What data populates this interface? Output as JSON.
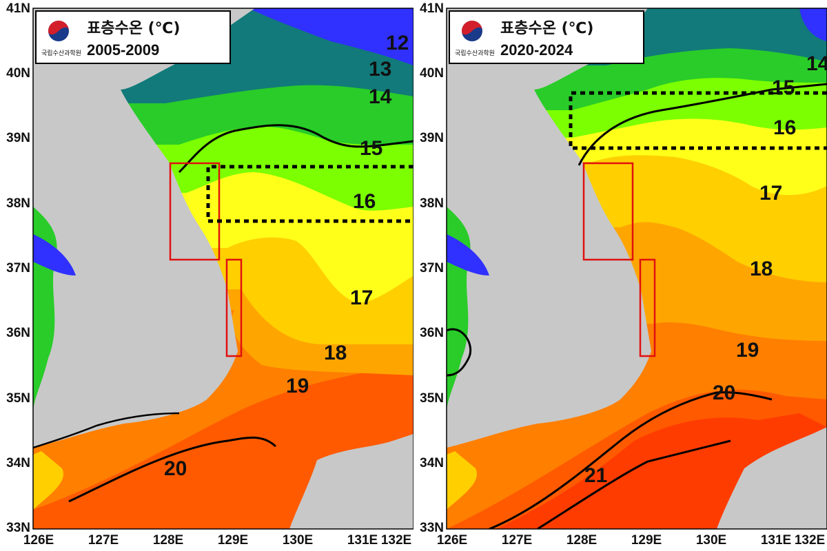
{
  "colors": {
    "land": "#c8c8c8",
    "t12": "#3030ff",
    "t13": "#127a7a",
    "t14": "#29cc29",
    "t15": "#7cff00",
    "t16": "#ffff1a",
    "t17": "#ffcf00",
    "t18": "#ffa500",
    "t19": "#ff7f00",
    "t20": "#ff5a00",
    "t21": "#ff3c00",
    "box_red": "#e01010",
    "dotted": "#000000"
  },
  "axis": {
    "lat_labels": [
      "41N",
      "40N",
      "39N",
      "38N",
      "37N",
      "36N",
      "35N",
      "34N",
      "33N"
    ],
    "lon_labels": [
      "126E",
      "127E",
      "128E",
      "129E",
      "130E",
      "131E",
      "132E"
    ]
  },
  "panels": [
    {
      "id": "left",
      "title": "표층수온 (℃)",
      "period": "2005-2009",
      "org": "국립수산과학원",
      "contours": [
        "12",
        "13",
        "14",
        "15",
        "16",
        "17",
        "18",
        "19",
        "20"
      ]
    },
    {
      "id": "right",
      "title": "표층수온 (℃)",
      "period": "2020-2024",
      "org": "국립수산과학원",
      "contours": [
        "14",
        "15",
        "16",
        "17",
        "18",
        "19",
        "20",
        "21"
      ]
    }
  ]
}
